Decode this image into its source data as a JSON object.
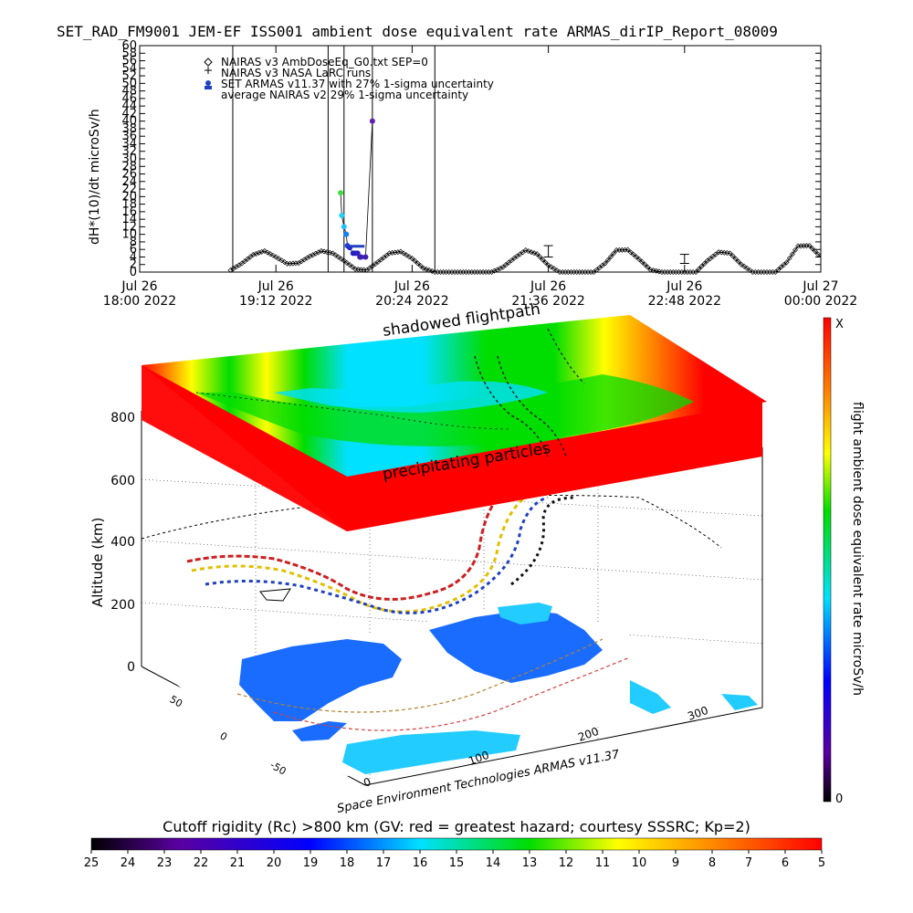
{
  "header": {
    "title": "SET_RAD_FM9001  JEM-EF ISS001 ambient dose equivalent rate ARMAS_dirIP_Report_08009"
  },
  "chart_data": [
    {
      "type": "line",
      "ylabel": "dH*(10)/dt microSv/h",
      "ylim": [
        0,
        60
      ],
      "yticks": [
        0,
        2,
        4,
        6,
        8,
        10,
        12,
        14,
        16,
        18,
        20,
        22,
        24,
        26,
        28,
        30,
        32,
        34,
        36,
        38,
        40,
        42,
        44,
        46,
        48,
        50,
        52,
        54,
        56,
        58,
        60
      ],
      "xlim_hours": [
        18.0,
        24.0
      ],
      "xticks": [
        {
          "l1": "Jul 26",
          "l2": "18:00  2022",
          "h": 18.0
        },
        {
          "l1": "Jul 26",
          "l2": "19:12  2022",
          "h": 19.2
        },
        {
          "l1": "Jul 26",
          "l2": "20:24  2022",
          "h": 20.4
        },
        {
          "l1": "Jul 26",
          "l2": "21:36  2022",
          "h": 21.6
        },
        {
          "l1": "Jul 26",
          "l2": "22:48  2022",
          "h": 22.8
        },
        {
          "l1": "Jul 27",
          "l2": "00:00  2022",
          "h": 24.0
        }
      ],
      "legend": [
        {
          "marker": "diamond",
          "label": "NAIRAS v3 AmbDoseEq_G0.txt SEP=0"
        },
        {
          "marker": "plus",
          "label": "NAIRAS v3 NASA LaRC runs"
        },
        {
          "marker": "dot",
          "label": "SET ARMAS v11.37 with 27% 1-sigma uncertainty"
        },
        {
          "marker": "none",
          "label": "average NAIRAS v2 29% 1-sigma uncertainty"
        }
      ],
      "series": [
        {
          "name": "NAIRAS v3 AmbDoseEq_G0.txt SEP=0",
          "x_hours": [
            18.8,
            18.9,
            19.0,
            19.1,
            19.2,
            19.3,
            19.4,
            19.5,
            19.6,
            19.7,
            19.8,
            19.9,
            20.0,
            20.1,
            20.2,
            20.3,
            20.4,
            20.5,
            20.6,
            20.7,
            20.8,
            20.9,
            21.0,
            21.1,
            21.2,
            21.3,
            21.4,
            21.5,
            21.6,
            21.7,
            21.8,
            21.9,
            22.0,
            22.1,
            22.2,
            22.3,
            22.4,
            22.5,
            22.6,
            22.7,
            22.8,
            22.9,
            23.0,
            23.1,
            23.2,
            23.3,
            23.4,
            23.5,
            23.6,
            23.7,
            23.8,
            23.9,
            24.0
          ],
          "values": [
            0.5,
            2.3,
            4.6,
            5.6,
            4.0,
            2.2,
            2.4,
            4.2,
            5.6,
            5.0,
            3.0,
            0.8,
            0.5,
            2.7,
            5.0,
            5.4,
            3.6,
            1.0,
            0.0,
            0.0,
            0.0,
            0.0,
            0.0,
            0.0,
            1.3,
            3.7,
            5.8,
            4.8,
            1.8,
            0.0,
            0.0,
            0.0,
            0.0,
            2.3,
            5.8,
            5.9,
            3.4,
            0.6,
            0.0,
            0.0,
            0.0,
            0.0,
            3.0,
            5.3,
            5.0,
            2.0,
            0.0,
            0.0,
            0.0,
            2.6,
            6.9,
            7.0,
            4.0
          ]
        },
        {
          "name": "SET ARMAS v11.37 with 27% 1-sigma uncertainty",
          "x_hours": [
            19.77,
            19.78,
            19.8,
            19.82,
            19.83,
            19.85,
            19.88,
            19.9,
            19.92,
            19.94,
            19.95,
            19.99,
            20.05
          ],
          "values": [
            21,
            15,
            12,
            10,
            7,
            6.5,
            5,
            5,
            5,
            4,
            4,
            4,
            40
          ]
        }
      ],
      "error_bars": [
        {
          "x_hour": 21.6,
          "value": 5.5,
          "err": 1.5
        },
        {
          "x_hour": 22.8,
          "value": 3.5,
          "err": 1.2
        }
      ]
    },
    {
      "type": "heatmap",
      "zlabel": "Altitude (km)",
      "zticks": [
        "0",
        "200",
        "400",
        "600",
        "800"
      ],
      "x_ticks": [
        "0",
        "100",
        "200",
        "300"
      ],
      "y_ticks": [
        "-50",
        "0",
        "50"
      ],
      "annotations": [
        "shadowed flightpath",
        "precipitating particles",
        "Space Environment Technologies ARMAS v11.37"
      ]
    }
  ],
  "colorbar_right": {
    "label": "flight ambient dose equivalent rate microSv/h",
    "top_label": "X",
    "bottom_label": "0"
  },
  "colorbar_bottom": {
    "title": "Cutoff rigidity (Rc) >800 km (GV: red = greatest hazard; courtesy SSSRC; Kp=2)",
    "ticks": [
      "25",
      "24",
      "23",
      "22",
      "21",
      "20",
      "19",
      "18",
      "17",
      "16",
      "15",
      "14",
      "13",
      "12",
      "11",
      "10",
      "9",
      "8",
      "7",
      "6",
      "5"
    ]
  }
}
